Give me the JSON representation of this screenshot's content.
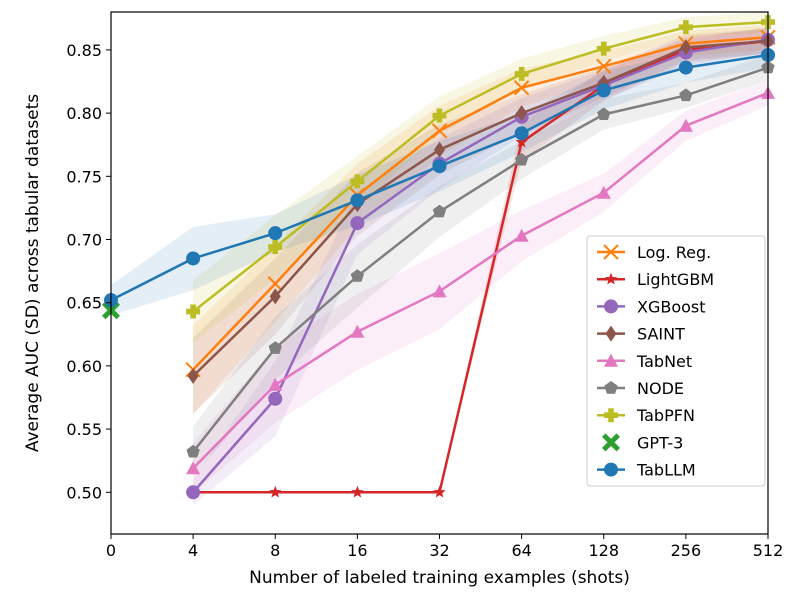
{
  "chart_data": {
    "type": "line",
    "title": "",
    "xlabel": "Number of labeled training examples (shots)",
    "ylabel": "Average AUC (SD) across tabular datasets",
    "x": [
      "0",
      "4",
      "8",
      "16",
      "32",
      "64",
      "128",
      "256",
      "512"
    ],
    "x_scale": "categorical (log-spaced shots)",
    "ylim": [
      0.467,
      0.88
    ],
    "yticks": [
      "0.50",
      "0.55",
      "0.60",
      "0.65",
      "0.70",
      "0.75",
      "0.80",
      "0.85"
    ],
    "grid": false,
    "legend_position": "lower-right",
    "series": [
      {
        "name": "Log. Reg.",
        "color": "#ff7f0e",
        "marker": "x",
        "values": [
          null,
          0.597,
          0.665,
          0.735,
          0.786,
          0.82,
          0.837,
          0.855,
          0.86
        ],
        "sd": [
          null,
          0.035,
          0.03,
          0.025,
          0.02,
          0.015,
          0.012,
          0.01,
          0.01
        ]
      },
      {
        "name": "LightGBM",
        "color": "#d62728",
        "marker": "star",
        "values": [
          null,
          0.5,
          0.5,
          0.5,
          0.5,
          0.777,
          0.822,
          0.85,
          0.857
        ],
        "sd": [
          null,
          0,
          0,
          0,
          0,
          0.015,
          0.012,
          0.01,
          0.01
        ]
      },
      {
        "name": "XGBoost",
        "color": "#9467bd",
        "marker": "circle",
        "values": [
          null,
          0.5,
          0.574,
          0.713,
          0.76,
          0.797,
          0.822,
          0.848,
          0.858
        ],
        "sd": [
          null,
          0.01,
          0.03,
          0.025,
          0.02,
          0.015,
          0.012,
          0.01,
          0.01
        ]
      },
      {
        "name": "SAINT",
        "color": "#8c564b",
        "marker": "diamond",
        "values": [
          null,
          0.592,
          0.655,
          0.728,
          0.771,
          0.8,
          0.824,
          0.852,
          0.857
        ],
        "sd": [
          null,
          0.03,
          0.03,
          0.025,
          0.02,
          0.015,
          0.012,
          0.01,
          0.01
        ]
      },
      {
        "name": "TabNet",
        "color": "#e377c2",
        "marker": "triangle",
        "values": [
          null,
          0.519,
          0.585,
          0.627,
          0.659,
          0.703,
          0.737,
          0.79,
          0.816
        ],
        "sd": [
          null,
          0.02,
          0.03,
          0.03,
          0.03,
          0.02,
          0.015,
          0.012,
          0.01
        ]
      },
      {
        "name": "NODE",
        "color": "#7f7f7f",
        "marker": "pentagon",
        "values": [
          null,
          0.532,
          0.614,
          0.671,
          0.722,
          0.763,
          0.799,
          0.814,
          0.836
        ],
        "sd": [
          null,
          0.02,
          0.025,
          0.025,
          0.02,
          0.015,
          0.012,
          0.01,
          0.01
        ]
      },
      {
        "name": "TabPFN",
        "color": "#bcbd22",
        "marker": "plus",
        "values": [
          null,
          0.643,
          0.694,
          0.746,
          0.798,
          0.831,
          0.851,
          0.868,
          0.872
        ],
        "sd": [
          null,
          0.025,
          0.025,
          0.02,
          0.015,
          0.012,
          0.01,
          0.008,
          0.008
        ]
      },
      {
        "name": "GPT-3",
        "color": "#2ca02c",
        "marker": "bigx",
        "values": [
          0.644,
          null,
          null,
          null,
          null,
          null,
          null,
          null,
          null
        ],
        "sd": [
          null,
          null,
          null,
          null,
          null,
          null,
          null,
          null,
          null
        ]
      },
      {
        "name": "TabLLM",
        "color": "#1f77b4",
        "marker": "circle",
        "values": [
          0.652,
          0.685,
          0.705,
          0.731,
          0.758,
          0.784,
          0.818,
          0.836,
          0.846
        ],
        "sd": [
          0.012,
          0.025,
          0.015,
          0.02,
          0.02,
          0.015,
          0.015,
          0.012,
          0.01
        ]
      }
    ]
  }
}
